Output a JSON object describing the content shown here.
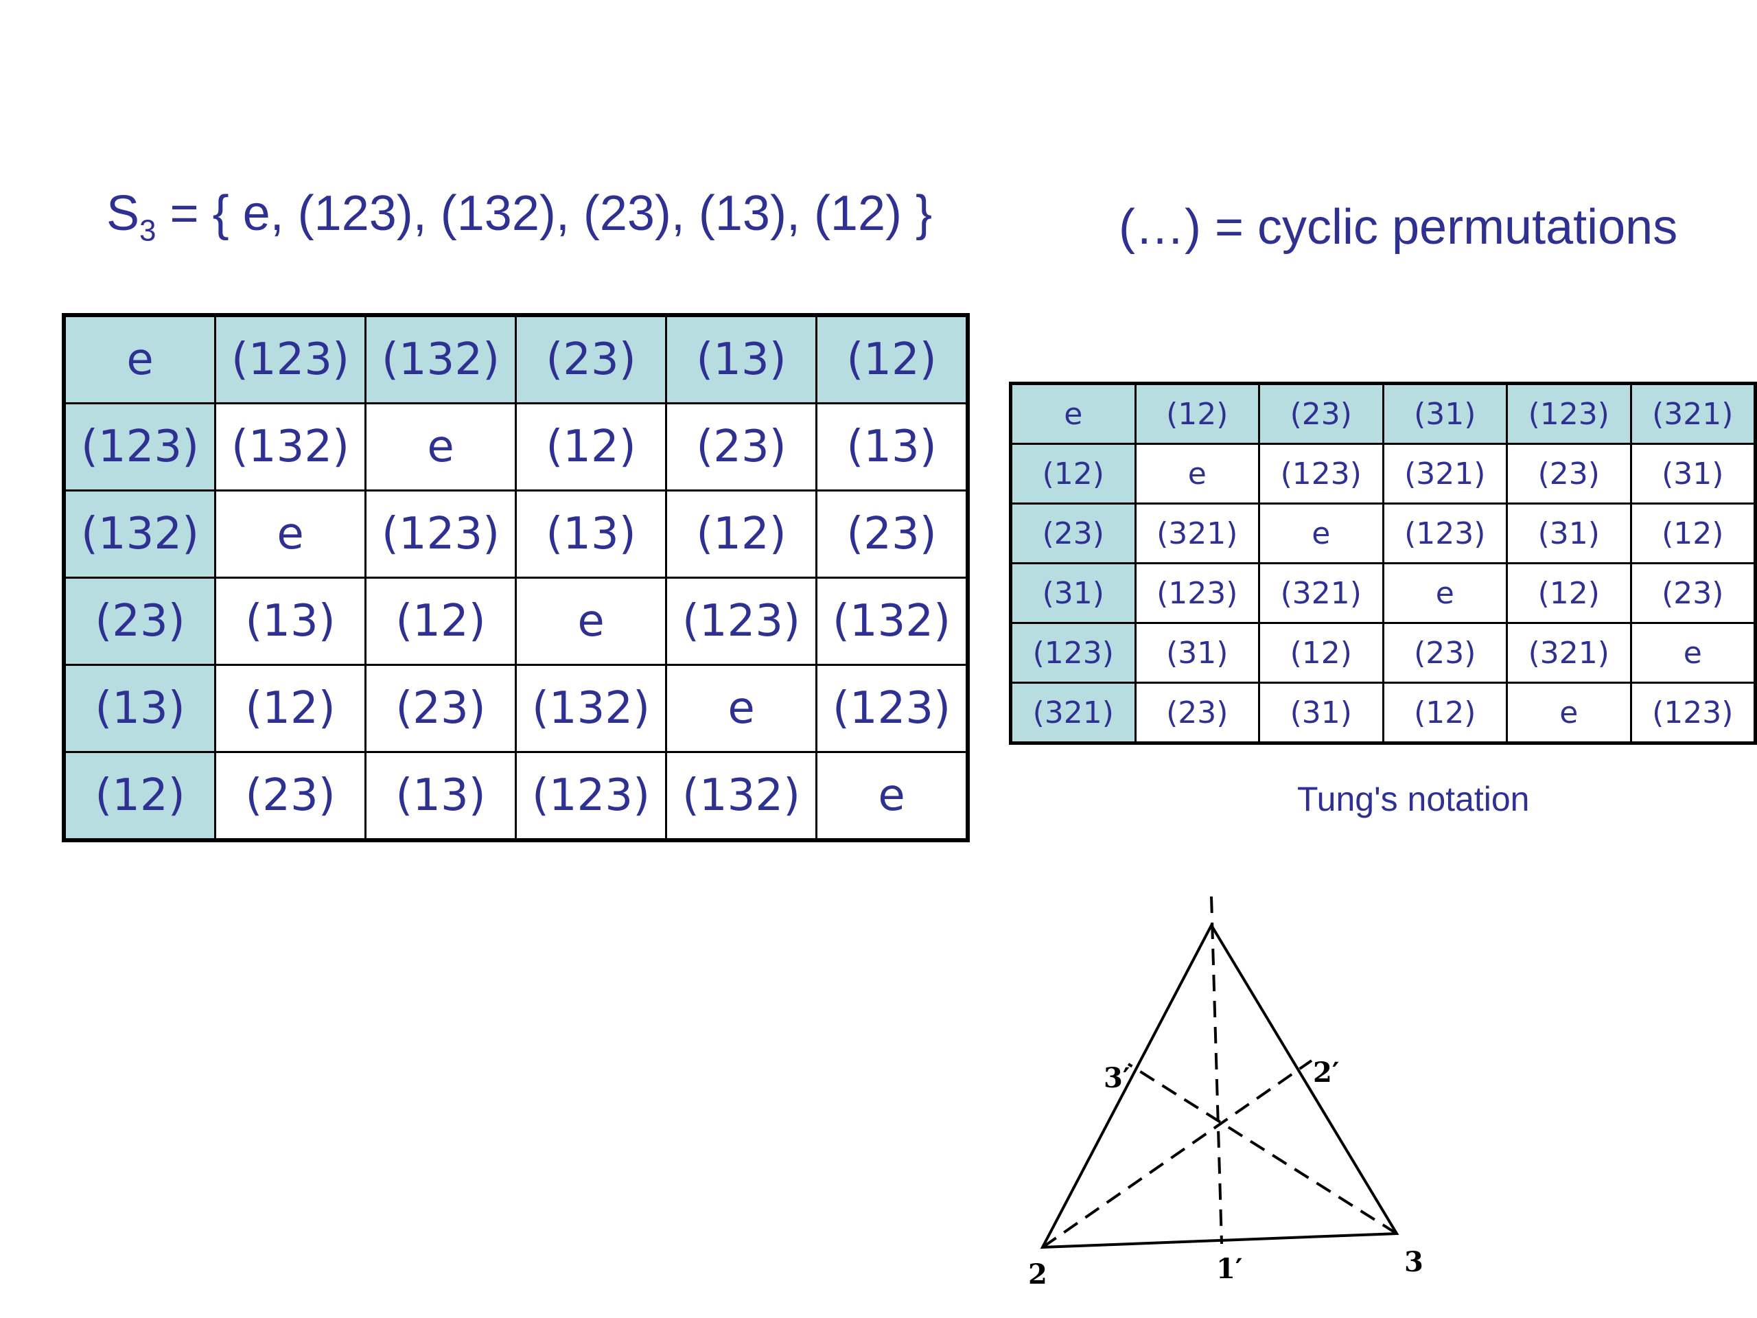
{
  "header": {
    "title_prefix": "S",
    "title_subscript": "3",
    "title_rest": " = { e, (123), (132), (23), (13), (12) }",
    "note": "(…) = cyclic permutations"
  },
  "table": {
    "rows": [
      [
        "e",
        "(123)",
        "(132)",
        "(23)",
        "(13)",
        "(12)"
      ],
      [
        "(123)",
        "(132)",
        "e",
        "(12)",
        "(23)",
        "(13)"
      ],
      [
        "(132)",
        "e",
        "(123)",
        "(13)",
        "(12)",
        "(23)"
      ],
      [
        "(23)",
        "(13)",
        "(12)",
        "e",
        "(123)",
        "(132)"
      ],
      [
        "(13)",
        "(12)",
        "(23)",
        "(132)",
        "e",
        "(123)"
      ],
      [
        "(12)",
        "(23)",
        "(13)",
        "(123)",
        "(132)",
        "e"
      ]
    ]
  },
  "tung_table": {
    "rows": [
      [
        "e",
        "(12)",
        "(23)",
        "(31)",
        "(123)",
        "(321)"
      ],
      [
        "(12)",
        "e",
        "(123)",
        "(321)",
        "(23)",
        "(31)"
      ],
      [
        "(23)",
        "(321)",
        "e",
        "(123)",
        "(31)",
        "(12)"
      ],
      [
        "(31)",
        "(123)",
        "(321)",
        "e",
        "(12)",
        "(23)"
      ],
      [
        "(123)",
        "(31)",
        "(12)",
        "(23)",
        "(321)",
        "e"
      ],
      [
        "(321)",
        "(23)",
        "(31)",
        "(12)",
        "e",
        "(123)"
      ]
    ],
    "caption": "Tung's notation"
  },
  "diagram": {
    "labels": [
      "2",
      "3",
      "1′",
      "2′",
      "3′"
    ]
  }
}
